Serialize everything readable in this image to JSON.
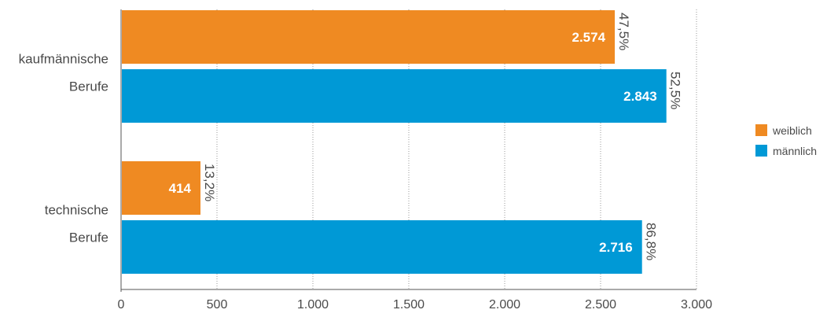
{
  "chart_data": {
    "type": "bar",
    "orientation": "horizontal",
    "categories": [
      [
        "kaufmännische",
        "Berufe"
      ],
      [
        "technische",
        "Berufe"
      ]
    ],
    "series": [
      {
        "name": "weiblich",
        "color": "#ef8a22",
        "values": [
          2574,
          414
        ],
        "value_labels": [
          "2.574",
          "414"
        ],
        "percent_labels": [
          "47,5%",
          "13,2%"
        ]
      },
      {
        "name": "männlich",
        "color": "#0099d6",
        "values": [
          2843,
          2716
        ],
        "value_labels": [
          "2.843",
          "2.716"
        ],
        "percent_labels": [
          "52,5%",
          "86,8%"
        ]
      }
    ],
    "xlim": [
      0,
      3000
    ],
    "xticks": [
      0,
      500,
      1000,
      1500,
      2000,
      2500,
      3000
    ],
    "xtick_labels": [
      "0",
      "500",
      "1.000",
      "1.500",
      "2.000",
      "2.500",
      "3.000"
    ],
    "grid": "vertical dotted",
    "legend_position": "right"
  }
}
